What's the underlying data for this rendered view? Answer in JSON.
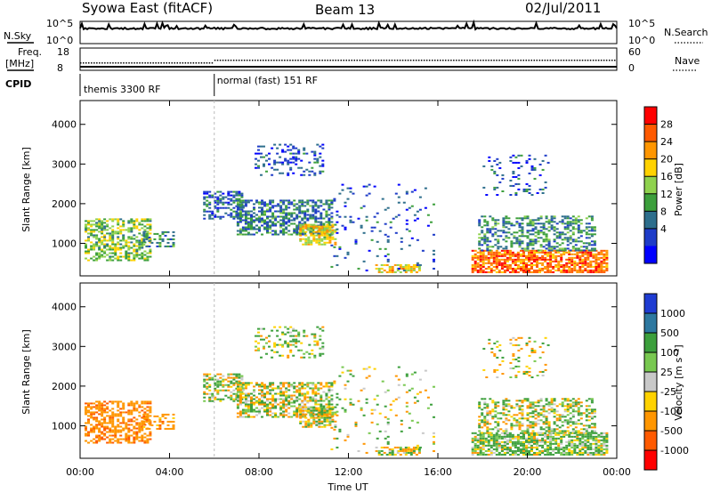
{
  "header": {
    "station": "Syowa East (fitACF)",
    "beam": "Beam 13",
    "date": "02/Jul/2011"
  },
  "noise_panel": {
    "left_label": "N.Sky",
    "right_label": "N.Search",
    "left_ticks": [
      "10^5",
      "10^0"
    ],
    "right_ticks": [
      "10^5",
      "10^0"
    ]
  },
  "freq_panel": {
    "left_label_line1": "Freq.",
    "left_label_line2": "[MHz]",
    "right_label": "Nave",
    "left_ticks": [
      "18",
      "8"
    ],
    "right_ticks": [
      "60",
      "0"
    ]
  },
  "cpid_panel": {
    "label": "CPID",
    "segments": [
      {
        "text": "themis 3300 RF",
        "start_hour": 0
      },
      {
        "text": "normal (fast) 151 RF",
        "start_hour": 6.0
      }
    ]
  },
  "power_panel": {
    "ylabel": "Slant Range [km]",
    "cbar_label": "Power [dB]",
    "cbar_ticks": [
      "28",
      "24",
      "20",
      "16",
      "12",
      "8",
      "4"
    ],
    "cbar_colors": [
      "#ff0000",
      "#ff5a00",
      "#ff9600",
      "#ffd200",
      "#8fd24e",
      "#3c9f3c",
      "#2d6e8c",
      "#1e3cc8",
      "#0000ff"
    ]
  },
  "velocity_panel": {
    "ylabel": "Slant Range [km]",
    "cbar_label": "Velocity [m s⁻¹]",
    "cbar_ticks": [
      "1000",
      "500",
      "100",
      "25",
      "-25",
      "-100",
      "-500",
      "-1000"
    ],
    "cbar_colors": [
      "#1f3cd2",
      "#2d78a0",
      "#3c9f3c",
      "#78c850",
      "#c8c8c8",
      "#ffd200",
      "#ff9600",
      "#ff5a00",
      "#ff0000"
    ]
  },
  "xaxis": {
    "label": "Time UT",
    "ticks": [
      "00:00",
      "04:00",
      "08:00",
      "12:00",
      "16:00",
      "20:00",
      "00:00"
    ]
  },
  "yaxis": {
    "ticks": [
      "4000",
      "3000",
      "2000",
      "1000"
    ]
  },
  "chart_data": {
    "type": "heatmap",
    "x_range_hours": [
      0,
      24
    ],
    "y_range_km": [
      180,
      4600
    ],
    "power_range_db": [
      0,
      30
    ],
    "velocity_range": [
      -1000,
      1000
    ],
    "scatter_regions": [
      {
        "t0": 0.2,
        "t1": 3.2,
        "r0": 550,
        "r1": 1600,
        "power": 14,
        "velocity": -400,
        "density": 0.55
      },
      {
        "t0": 2.8,
        "t1": 4.2,
        "r0": 900,
        "r1": 1300,
        "power": 9,
        "velocity": -300,
        "density": 0.4
      },
      {
        "t0": 5.5,
        "t1": 7.3,
        "r0": 1600,
        "r1": 2300,
        "power": 7,
        "velocity": 30,
        "density": 0.5
      },
      {
        "t0": 7.0,
        "t1": 11.2,
        "r0": 1200,
        "r1": 2100,
        "power": 9,
        "velocity": 0,
        "density": 0.6
      },
      {
        "t0": 9.8,
        "t1": 11.4,
        "r0": 950,
        "r1": 1450,
        "power": 18,
        "velocity": -20,
        "density": 0.7
      },
      {
        "t0": 7.8,
        "t1": 10.8,
        "r0": 2700,
        "r1": 3500,
        "power": 6,
        "velocity": 60,
        "density": 0.25
      },
      {
        "t0": 13.2,
        "t1": 15.2,
        "r0": 250,
        "r1": 450,
        "power": 19,
        "velocity": -60,
        "density": 0.7
      },
      {
        "t0": 17.5,
        "t1": 23.6,
        "r0": 250,
        "r1": 800,
        "power": 24,
        "velocity": 120,
        "density": 0.75
      },
      {
        "t0": 17.8,
        "t1": 23.0,
        "r0": 800,
        "r1": 1700,
        "power": 10,
        "velocity": 20,
        "density": 0.45
      },
      {
        "t0": 18.0,
        "t1": 21.0,
        "r0": 2200,
        "r1": 3200,
        "power": 7,
        "velocity": -80,
        "density": 0.15
      },
      {
        "t0": 11.2,
        "t1": 15.8,
        "r0": 250,
        "r1": 2500,
        "power": 6,
        "velocity": 30,
        "density": 0.06
      }
    ]
  }
}
